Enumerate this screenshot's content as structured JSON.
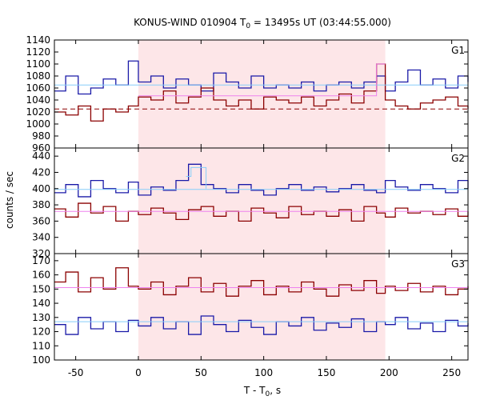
{
  "title": {
    "main": "KONUS-WIND 010904 T",
    "sub": "0",
    "rest": " = 13495s UT (03:44:55.000)"
  },
  "xlabel": {
    "main": "T - T",
    "sub": "0",
    "rest": ", s"
  },
  "ylabel": "counts / sec",
  "colors": {
    "shade": "#fde6e8",
    "series_dark_red": "#8b0000",
    "series_blue": "#1a1aa8",
    "bg_light_blue": "#87cefa",
    "bg_pink": "#ee82ee"
  },
  "chart_data": {
    "type": "line",
    "x_range": [
      -67,
      263
    ],
    "x_ticks": [
      -50,
      0,
      50,
      100,
      150,
      200,
      250
    ],
    "shaded_interval": [
      0,
      197
    ],
    "panels": [
      {
        "label": "G1",
        "y_range": [
          960,
          1140
        ],
        "y_ticks": [
          960,
          980,
          1000,
          1020,
          1040,
          1060,
          1080,
          1100,
          1120,
          1140
        ],
        "series": [
          {
            "color": "blue",
            "style": "step",
            "x": [
              -67,
              -58,
              -48,
              -38,
              -28,
              -18,
              -8,
              0,
              10,
              20,
              30,
              40,
              50,
              60,
              70,
              80,
              90,
              100,
              110,
              120,
              130,
              140,
              150,
              160,
              170,
              180,
              190,
              197,
              205,
              215,
              225,
              235,
              245,
              255,
              263
            ],
            "y": [
              1055,
              1080,
              1050,
              1060,
              1075,
              1065,
              1105,
              1070,
              1080,
              1060,
              1075,
              1065,
              1055,
              1085,
              1070,
              1060,
              1080,
              1060,
              1065,
              1060,
              1070,
              1055,
              1065,
              1070,
              1060,
              1070,
              1080,
              1055,
              1070,
              1090,
              1065,
              1075,
              1060,
              1080,
              1070
            ]
          },
          {
            "color": "dark_red",
            "style": "step",
            "x": [
              -67,
              -58,
              -48,
              -38,
              -28,
              -18,
              -8,
              0,
              10,
              20,
              30,
              40,
              50,
              60,
              70,
              80,
              90,
              100,
              110,
              120,
              130,
              140,
              150,
              160,
              170,
              180,
              190,
              197,
              205,
              215,
              225,
              235,
              245,
              255,
              263
            ],
            "y": [
              1020,
              1015,
              1030,
              1005,
              1025,
              1020,
              1030,
              1045,
              1040,
              1055,
              1035,
              1045,
              1060,
              1040,
              1030,
              1040,
              1025,
              1045,
              1040,
              1035,
              1045,
              1030,
              1040,
              1050,
              1035,
              1055,
              1100,
              1040,
              1030,
              1025,
              1035,
              1040,
              1045,
              1030,
              1025
            ]
          },
          {
            "color": "bg_light_blue",
            "style": "background",
            "x": [
              -67,
              263
            ],
            "y": [
              1065,
              1065
            ]
          },
          {
            "color": "bg_dark_red",
            "style": "background_dashed",
            "x": [
              -67,
              263
            ],
            "y": [
              1025,
              1025
            ]
          },
          {
            "color": "bg_pink",
            "style": "step_outline",
            "x": [
              0,
              190,
              197
            ],
            "y": [
              1047,
              1100,
              1100
            ]
          }
        ]
      },
      {
        "label": "G2",
        "y_range": [
          320,
          450
        ],
        "y_ticks": [
          320,
          340,
          360,
          380,
          400,
          420,
          440
        ],
        "series": [
          {
            "color": "blue",
            "style": "step",
            "x": [
              -67,
              -58,
              -48,
              -38,
              -28,
              -18,
              -8,
              0,
              10,
              20,
              30,
              40,
              50,
              60,
              70,
              80,
              90,
              100,
              110,
              120,
              130,
              140,
              150,
              160,
              170,
              180,
              190,
              197,
              205,
              215,
              225,
              235,
              245,
              255,
              263
            ],
            "y": [
              395,
              405,
              390,
              410,
              400,
              395,
              408,
              392,
              402,
              398,
              410,
              430,
              405,
              400,
              395,
              405,
              398,
              392,
              400,
              405,
              398,
              402,
              396,
              400,
              405,
              398,
              395,
              410,
              402,
              398,
              405,
              400,
              395,
              410,
              400
            ]
          },
          {
            "color": "dark_red",
            "style": "step",
            "x": [
              -67,
              -58,
              -48,
              -38,
              -28,
              -18,
              -8,
              0,
              10,
              20,
              30,
              40,
              50,
              60,
              70,
              80,
              90,
              100,
              110,
              120,
              130,
              140,
              150,
              160,
              170,
              180,
              190,
              197,
              205,
              215,
              225,
              235,
              245,
              255,
              263
            ],
            "y": [
              375,
              365,
              382,
              370,
              378,
              360,
              372,
              368,
              376,
              370,
              362,
              374,
              378,
              366,
              372,
              360,
              376,
              370,
              364,
              378,
              368,
              372,
              366,
              374,
              360,
              378,
              370,
              365,
              376,
              370,
              372,
              368,
              375,
              366,
              372
            ]
          },
          {
            "color": "bg_light_blue",
            "style": "background",
            "x": [
              -67,
              263
            ],
            "y": [
              399,
              399
            ]
          },
          {
            "color": "bg_pink",
            "style": "background",
            "x": [
              -67,
              263
            ],
            "y": [
              372,
              372
            ]
          },
          {
            "color": "bg_light_blue",
            "style": "step_outline",
            "x": [
              38,
              42,
              50,
              54
            ],
            "y": [
              415,
              426,
              426,
              400
            ]
          }
        ]
      },
      {
        "label": "G3",
        "y_range": [
          100,
          175
        ],
        "y_ticks": [
          100,
          110,
          120,
          130,
          140,
          150,
          160,
          170
        ],
        "series": [
          {
            "color": "blue",
            "style": "step",
            "x": [
              -67,
              -58,
              -48,
              -38,
              -28,
              -18,
              -8,
              0,
              10,
              20,
              30,
              40,
              50,
              60,
              70,
              80,
              90,
              100,
              110,
              120,
              130,
              140,
              150,
              160,
              170,
              180,
              190,
              197,
              205,
              215,
              225,
              235,
              245,
              255,
              263
            ],
            "y": [
              125,
              118,
              130,
              122,
              127,
              120,
              128,
              124,
              130,
              122,
              127,
              118,
              131,
              125,
              120,
              128,
              123,
              118,
              127,
              124,
              130,
              121,
              126,
              123,
              129,
              120,
              127,
              125,
              130,
              122,
              126,
              120,
              128,
              124,
              126
            ]
          },
          {
            "color": "dark_red",
            "style": "step",
            "x": [
              -67,
              -58,
              -48,
              -38,
              -28,
              -18,
              -8,
              0,
              10,
              20,
              30,
              40,
              50,
              60,
              70,
              80,
              90,
              100,
              110,
              120,
              130,
              140,
              150,
              160,
              170,
              180,
              190,
              197,
              205,
              215,
              225,
              235,
              245,
              255,
              263
            ],
            "y": [
              155,
              162,
              148,
              158,
              150,
              165,
              152,
              150,
              155,
              146,
              152,
              158,
              148,
              154,
              145,
              152,
              156,
              146,
              152,
              148,
              155,
              150,
              145,
              153,
              149,
              156,
              147,
              152,
              149,
              154,
              148,
              152,
              146,
              150,
              152
            ]
          },
          {
            "color": "bg_pink",
            "style": "background",
            "x": [
              -67,
              263
            ],
            "y": [
              151,
              151
            ]
          },
          {
            "color": "bg_light_blue",
            "style": "background",
            "x": [
              -67,
              263
            ],
            "y": [
              127,
              127
            ]
          }
        ]
      }
    ]
  }
}
